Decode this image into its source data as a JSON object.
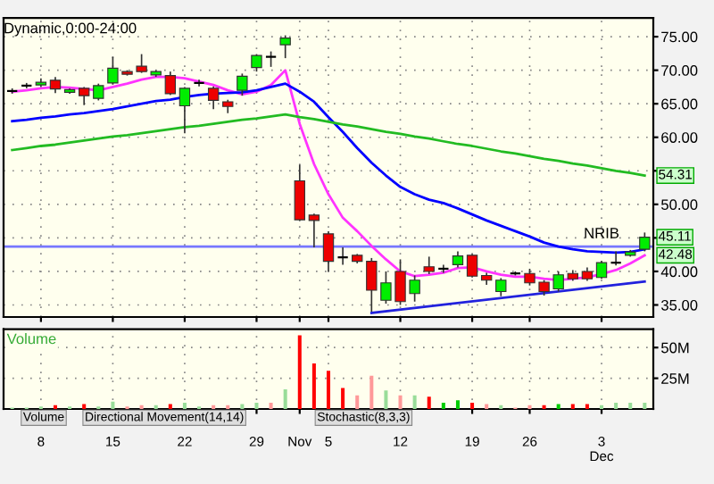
{
  "chart_data": [
    {
      "type": "candlestick",
      "title": "Dynamic,0:00-24:00",
      "categories": [
        null,
        null,
        null,
        null,
        null,
        null,
        null,
        null,
        null,
        null,
        null,
        null,
        null,
        null,
        null,
        null,
        null,
        null,
        null,
        null,
        null,
        null,
        null,
        null,
        null,
        null,
        null,
        null,
        null,
        null,
        null,
        null,
        null,
        null,
        null,
        null,
        null,
        null,
        null,
        null,
        null,
        null,
        null,
        null,
        null
      ],
      "ohlc": [
        [
          66.9,
          67.3,
          66.5,
          66.9
        ],
        [
          67.7,
          68.1,
          67.3,
          67.7
        ],
        [
          67.8,
          68.8,
          67.5,
          68.2
        ],
        [
          68.5,
          69.0,
          66.6,
          67.2
        ],
        [
          66.7,
          67.3,
          66.5,
          67.1
        ],
        [
          67.3,
          67.5,
          64.8,
          66.2
        ],
        [
          65.8,
          68.0,
          65.5,
          67.7
        ],
        [
          68.1,
          72.0,
          67.9,
          70.3
        ],
        [
          69.8,
          70.0,
          69.2,
          69.4
        ],
        [
          70.6,
          72.4,
          69.6,
          69.8
        ],
        [
          69.3,
          70.0,
          69.0,
          69.8
        ],
        [
          69.2,
          69.8,
          66.3,
          66.5
        ],
        [
          64.7,
          67.5,
          60.6,
          67.3
        ],
        [
          68.1,
          68.6,
          67.6,
          68.1
        ],
        [
          67.3,
          67.6,
          64.2,
          65.5
        ],
        [
          65.3,
          65.6,
          63.6,
          64.6
        ],
        [
          67.0,
          69.5,
          66.2,
          69.1
        ],
        [
          70.4,
          72.4,
          69.8,
          72.2
        ],
        [
          72.0,
          72.8,
          70.5,
          72.0
        ],
        [
          73.8,
          75.2,
          71.8,
          74.8
        ],
        [
          53.5,
          55.9,
          47.5,
          47.7
        ],
        [
          48.4,
          48.6,
          43.6,
          47.6
        ],
        [
          45.6,
          46.0,
          40.0,
          41.5
        ],
        [
          42.1,
          43.6,
          41.0,
          42.1
        ],
        [
          42.4,
          42.6,
          41.2,
          41.5
        ],
        [
          41.5,
          42.0,
          34.0,
          37.2
        ],
        [
          35.7,
          40.0,
          35.2,
          38.3
        ],
        [
          40.0,
          41.8,
          35.0,
          35.5
        ],
        [
          36.7,
          39.4,
          35.5,
          38.7
        ],
        [
          40.7,
          42.2,
          39.6,
          40.0
        ],
        [
          40.4,
          41.0,
          39.8,
          40.4
        ],
        [
          41.0,
          43.0,
          40.6,
          42.3
        ],
        [
          42.4,
          42.6,
          39.1,
          39.3
        ],
        [
          39.4,
          39.8,
          38.0,
          38.7
        ],
        [
          37.0,
          39.0,
          36.3,
          38.7
        ],
        [
          39.7,
          40.0,
          39.4,
          39.7
        ],
        [
          39.7,
          40.4,
          37.9,
          38.3
        ],
        [
          38.4,
          38.7,
          36.4,
          37.0
        ],
        [
          37.4,
          40.0,
          37.0,
          39.5
        ],
        [
          39.7,
          40.2,
          38.6,
          38.9
        ],
        [
          40.0,
          40.6,
          38.6,
          38.9
        ],
        [
          39.1,
          41.6,
          38.9,
          41.3
        ],
        [
          41.3,
          43.0,
          40.9,
          41.3
        ],
        [
          42.4,
          43.2,
          42.2,
          42.9
        ],
        [
          43.3,
          45.8,
          43.0,
          45.1
        ]
      ],
      "series": [
        {
          "type": "line",
          "color": "#ff33ff",
          "values": [
            66.8,
            67.0,
            67.3,
            67.5,
            67.4,
            67.2,
            67.0,
            67.5,
            68.0,
            68.6,
            69.0,
            69.0,
            68.8,
            68.3,
            67.8,
            67.0,
            66.4,
            66.8,
            67.8,
            70.0,
            62.0,
            56.0,
            51.5,
            48.0,
            46.0,
            43.8,
            41.8,
            40.0,
            39.3,
            39.5,
            39.8,
            40.5,
            40.6,
            40.0,
            39.5,
            39.2,
            39.2,
            38.9,
            38.7,
            38.9,
            39.1,
            39.6,
            40.2,
            41.2,
            42.4
          ]
        },
        {
          "type": "line",
          "color": "#0000ff",
          "values": [
            62.4,
            62.6,
            62.9,
            63.1,
            63.4,
            63.6,
            63.9,
            64.2,
            64.6,
            65.0,
            65.4,
            65.6,
            66.0,
            66.3,
            66.5,
            66.6,
            66.7,
            67.0,
            67.5,
            68.0,
            66.8,
            65.3,
            63.0,
            60.8,
            58.4,
            56.2,
            54.3,
            52.6,
            51.5,
            50.7,
            50.2,
            49.4,
            48.5,
            47.6,
            46.8,
            46.0,
            45.2,
            44.3,
            43.7,
            43.3,
            43.0,
            42.9,
            42.8,
            42.9,
            43.3
          ]
        },
        {
          "type": "line",
          "color": "#22bb22",
          "values": [
            58.1,
            58.4,
            58.7,
            58.9,
            59.2,
            59.5,
            59.8,
            60.1,
            60.3,
            60.6,
            60.9,
            61.2,
            61.5,
            61.7,
            62.0,
            62.3,
            62.6,
            62.8,
            63.1,
            63.4,
            63.0,
            62.7,
            62.3,
            61.9,
            61.6,
            61.2,
            60.8,
            60.5,
            60.1,
            59.8,
            59.4,
            59.0,
            58.7,
            58.3,
            57.9,
            57.6,
            57.2,
            56.8,
            56.5,
            56.1,
            55.8,
            55.4,
            55.0,
            54.7,
            54.3
          ]
        },
        {
          "type": "line",
          "color": "#2222dd",
          "values": [
            null,
            null,
            null,
            null,
            null,
            null,
            null,
            null,
            null,
            null,
            null,
            null,
            null,
            null,
            null,
            null,
            null,
            null,
            null,
            null,
            null,
            null,
            null,
            null,
            null,
            33.8,
            null,
            null,
            null,
            null,
            null,
            null,
            null,
            null,
            null,
            null,
            null,
            null,
            null,
            null,
            null,
            null,
            null,
            null,
            38.5
          ]
        }
      ],
      "ref_lines": [
        {
          "axis": "y",
          "value": 43.7,
          "label": "NRIB",
          "color": "#7777ff"
        }
      ],
      "annotations": [
        {
          "text": "54.31",
          "y": 54.3
        },
        {
          "text": "45.11",
          "y": 45.1
        },
        {
          "text": "42.48",
          "y": 42.4
        }
      ],
      "ylim": [
        33.2,
        77.8
      ],
      "yticks": [
        {
          "value": 35,
          "label": "35.00"
        },
        {
          "value": 40,
          "label": "40.00"
        },
        {
          "value": 45,
          "label": null
        },
        {
          "value": 50,
          "label": "50.00"
        },
        {
          "value": 55,
          "label": null
        },
        {
          "value": 60,
          "label": "60.00"
        },
        {
          "value": 65,
          "label": "65.00"
        },
        {
          "value": 70,
          "label": "70.00"
        },
        {
          "value": 75,
          "label": "75.00"
        }
      ],
      "grid": true,
      "tick_labels": "y"
    },
    {
      "type": "bar",
      "title": "Volume",
      "categories": [
        null,
        null,
        "8",
        null,
        null,
        null,
        null,
        "15",
        null,
        null,
        null,
        null,
        "22",
        null,
        null,
        null,
        null,
        "29",
        null,
        null,
        "Nov",
        null,
        "5",
        null,
        null,
        null,
        null,
        "12",
        null,
        null,
        null,
        null,
        "19",
        null,
        null,
        null,
        "26",
        null,
        null,
        null,
        null,
        "3\nDec",
        null,
        null,
        null
      ],
      "values": [
        1,
        1,
        2,
        3,
        2,
        4,
        2,
        6,
        2,
        3,
        3,
        4,
        5,
        2,
        3,
        3,
        4,
        5,
        5,
        16,
        60,
        37,
        31,
        17,
        11,
        27,
        15,
        11,
        11,
        10,
        5,
        7,
        5,
        4,
        3,
        1,
        3,
        3,
        4,
        4,
        4,
        3,
        5,
        5,
        5
      ],
      "colors": [
        "#99dd99",
        "#99dd99",
        "#99dd99",
        "#ff0000",
        "#99dd99",
        "#ff0000",
        "#99dd99",
        "#99dd99",
        "#ff9999",
        "#ff9999",
        "#99dd99",
        "#ff0000",
        "#99dd99",
        "#99dd99",
        "#ff9999",
        "#ff9999",
        "#99dd99",
        "#99dd99",
        "#ff9999",
        "#99dd99",
        "#ff0000",
        "#ff0000",
        "#ff0000",
        "#ff0000",
        "#ff9999",
        "#ff9999",
        "#99dd99",
        "#ff9999",
        "#99dd99",
        "#ff0000",
        "#00cc00",
        "#00cc00",
        "#ff0000",
        "#ff9999",
        "#99dd99",
        "#ff9999",
        "#ff9999",
        "#ff0000",
        "#00cc00",
        "#ff0000",
        "#ff0000",
        "#99dd99",
        "#99dd99",
        "#99dd99",
        "#99dd99"
      ],
      "annotations": [
        "Volume",
        "Directional Movement(14,14)",
        "Stochastic(8,3,3)"
      ],
      "ylim": [
        0,
        65
      ],
      "yticks": [
        {
          "value": 25,
          "label": "25M"
        },
        {
          "value": 50,
          "label": "50M"
        }
      ],
      "grid": true
    }
  ]
}
